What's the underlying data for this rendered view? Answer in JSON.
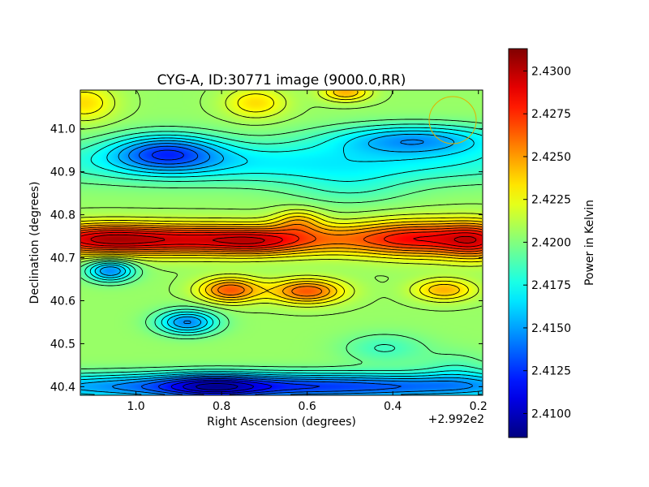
{
  "chart_data": {
    "type": "heatmap",
    "title": "CYG-A, ID:30771 image (9000.0,RR)",
    "xlabel": "Right Ascension (degrees)",
    "ylabel": "Declination (degrees)",
    "x_offset_label": "+2.992e2",
    "x_ticks": [
      {
        "value": 1.0,
        "label": "1.0"
      },
      {
        "value": 0.8,
        "label": "0.8"
      },
      {
        "value": 0.6,
        "label": "0.6"
      },
      {
        "value": 0.4,
        "label": "0.4"
      },
      {
        "value": 0.2,
        "label": "0.2"
      }
    ],
    "y_ticks": [
      {
        "value": 41.0,
        "label": "41.0"
      },
      {
        "value": 40.9,
        "label": "40.9"
      },
      {
        "value": 40.8,
        "label": "40.8"
      },
      {
        "value": 40.7,
        "label": "40.7"
      },
      {
        "value": 40.6,
        "label": "40.6"
      },
      {
        "value": 40.5,
        "label": "40.5"
      },
      {
        "value": 40.4,
        "label": "40.4"
      }
    ],
    "xlim": [
      1.13,
      0.19
    ],
    "ylim": [
      40.38,
      41.09
    ],
    "colorbar": {
      "label": "Power in Kelvin",
      "range": [
        2.4086,
        2.4313
      ],
      "ticks": [
        {
          "value": 2.43,
          "label": "2.4300"
        },
        {
          "value": 2.4275,
          "label": "2.4275"
        },
        {
          "value": 2.425,
          "label": "2.4250"
        },
        {
          "value": 2.4225,
          "label": "2.4225"
        },
        {
          "value": 2.42,
          "label": "2.4200"
        },
        {
          "value": 2.4175,
          "label": "2.4175"
        },
        {
          "value": 2.415,
          "label": "2.4150"
        },
        {
          "value": 2.4125,
          "label": "2.4125"
        },
        {
          "value": 2.41,
          "label": "2.4100"
        }
      ],
      "colormap": "jet"
    },
    "base_level": 2.4205,
    "features": [
      {
        "ra": 0.87,
        "dec": 40.742,
        "sra": 0.3,
        "sdec": 0.025,
        "amp": 0.0085
      },
      {
        "ra": 1.08,
        "dec": 40.745,
        "sra": 0.09,
        "sdec": 0.025,
        "amp": 0.003
      },
      {
        "ra": 0.72,
        "dec": 40.735,
        "sra": 0.07,
        "sdec": 0.02,
        "amp": 0.002
      },
      {
        "ra": 0.62,
        "dec": 40.785,
        "sra": 0.04,
        "sdec": 0.02,
        "amp": 0.003
      },
      {
        "ra": 0.34,
        "dec": 40.745,
        "sra": 0.1,
        "sdec": 0.03,
        "amp": 0.006
      },
      {
        "ra": 0.2,
        "dec": 40.74,
        "sra": 0.06,
        "sdec": 0.03,
        "amp": 0.006
      },
      {
        "ra": 0.78,
        "dec": 40.625,
        "sra": 0.05,
        "sdec": 0.02,
        "amp": 0.006
      },
      {
        "ra": 0.6,
        "dec": 40.622,
        "sra": 0.06,
        "sdec": 0.02,
        "amp": 0.006
      },
      {
        "ra": 0.28,
        "dec": 40.625,
        "sra": 0.05,
        "sdec": 0.018,
        "amp": 0.004
      },
      {
        "ra": 1.12,
        "dec": 41.06,
        "sra": 0.05,
        "sdec": 0.03,
        "amp": 0.003
      },
      {
        "ra": 0.72,
        "dec": 41.06,
        "sra": 0.05,
        "sdec": 0.025,
        "amp": 0.003
      },
      {
        "ra": 0.51,
        "dec": 41.085,
        "sra": 0.04,
        "sdec": 0.015,
        "amp": 0.004
      },
      {
        "ra": 0.62,
        "dec": 40.92,
        "sra": 0.5,
        "sdec": 0.035,
        "amp": -0.0035
      },
      {
        "ra": 0.93,
        "dec": 40.945,
        "sra": 0.09,
        "sdec": 0.03,
        "amp": -0.006
      },
      {
        "ra": 0.35,
        "dec": 40.975,
        "sra": 0.14,
        "sdec": 0.025,
        "amp": -0.005
      },
      {
        "ra": 1.06,
        "dec": 40.67,
        "sra": 0.04,
        "sdec": 0.018,
        "amp": -0.006
      },
      {
        "ra": 0.88,
        "dec": 40.55,
        "sra": 0.05,
        "sdec": 0.02,
        "amp": -0.006
      },
      {
        "ra": 0.66,
        "dec": 40.4,
        "sra": 0.5,
        "sdec": 0.022,
        "amp": -0.008
      },
      {
        "ra": 0.82,
        "dec": 40.4,
        "sra": 0.08,
        "sdec": 0.02,
        "amp": -0.004
      },
      {
        "ra": 0.42,
        "dec": 40.49,
        "sra": 0.07,
        "sdec": 0.025,
        "amp": -0.002
      },
      {
        "ra": 0.5,
        "dec": 40.86,
        "sra": 0.1,
        "sdec": 0.03,
        "amp": -0.0015
      },
      {
        "ra": 0.25,
        "dec": 40.44,
        "sra": 0.06,
        "sdec": 0.03,
        "amp": -0.0015
      }
    ],
    "grid": false,
    "legend": "none"
  }
}
